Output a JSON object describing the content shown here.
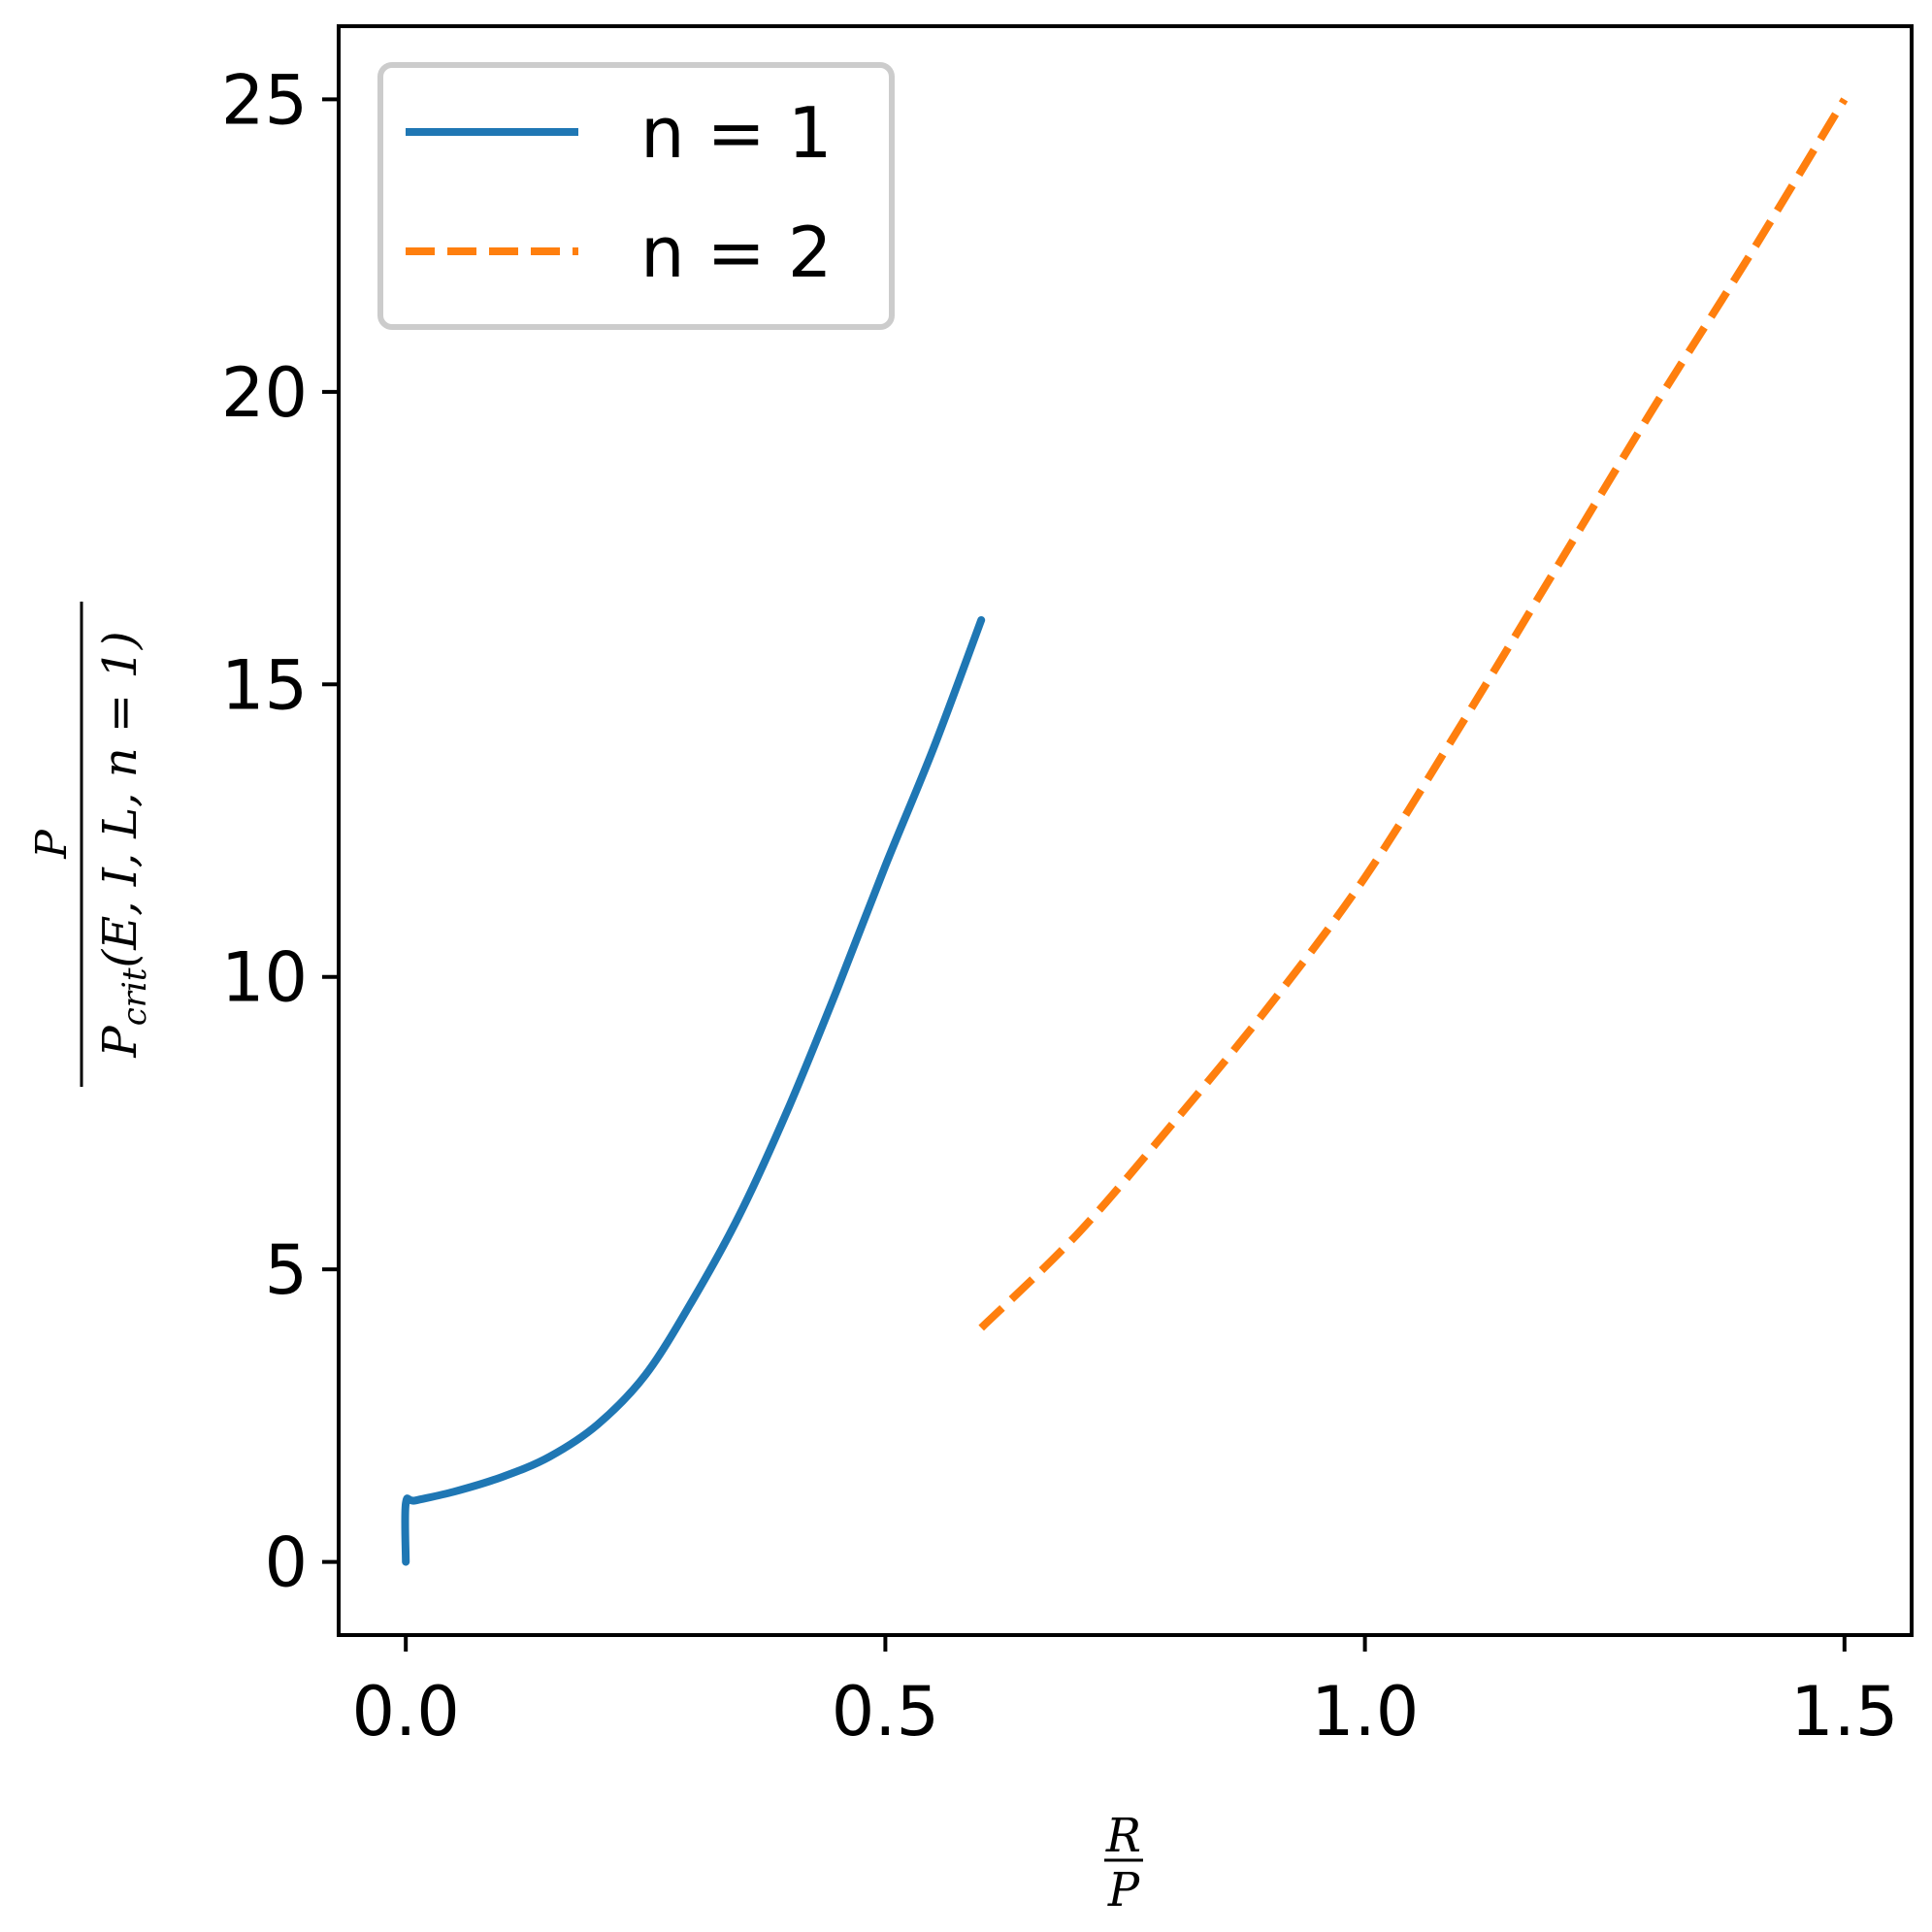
{
  "chart_data": {
    "type": "line",
    "title": "",
    "xlabel": {
      "numerator": "R",
      "denominator": "P"
    },
    "ylabel": {
      "numerator": "P",
      "denominator_main": "P",
      "denominator_sub": "crit",
      "denominator_args": "(E, I, L, n = 1)"
    },
    "xlim": [
      -0.07,
      1.57
    ],
    "ylim": [
      -1.25,
      26.25
    ],
    "xticks": [
      0.0,
      0.5,
      1.0,
      1.5
    ],
    "xtick_labels": [
      "0.0",
      "0.5",
      "1.0",
      "1.5"
    ],
    "yticks": [
      0,
      5,
      10,
      15,
      20,
      25
    ],
    "ytick_labels": [
      "0",
      "5",
      "10",
      "15",
      "20",
      "25"
    ],
    "grid": false,
    "legend_position": "top-left",
    "series": [
      {
        "name": "n = 1",
        "color": "#1f77b4",
        "style": "solid",
        "x": [
          0.0,
          0.0,
          0.01,
          0.05,
          0.1,
          0.15,
          0.2,
          0.25,
          0.3,
          0.35,
          0.4,
          0.45,
          0.5,
          0.55,
          0.6
        ],
        "y": [
          0.0,
          1.0,
          1.05,
          1.2,
          1.45,
          1.8,
          2.35,
          3.2,
          4.5,
          6.0,
          7.8,
          9.8,
          11.9,
          13.9,
          16.1
        ]
      },
      {
        "name": "n = 2",
        "color": "#ff7f0e",
        "style": "dashed",
        "x": [
          0.6,
          0.7,
          0.8,
          0.9,
          1.0,
          1.1,
          1.2,
          1.3,
          1.4,
          1.5
        ],
        "y": [
          4.0,
          5.6,
          7.5,
          9.5,
          11.7,
          14.3,
          17.0,
          19.7,
          22.3,
          25.0
        ]
      }
    ]
  }
}
